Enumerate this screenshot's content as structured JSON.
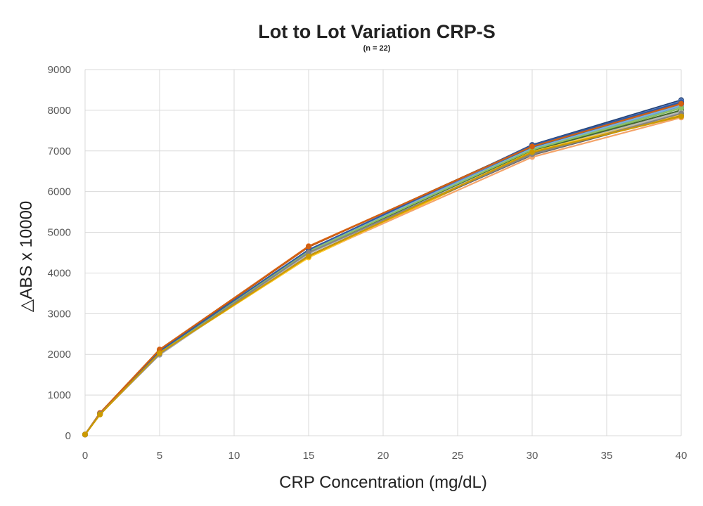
{
  "chart_data": {
    "type": "line",
    "title": "Lot to Lot Variation CRP-S",
    "subtitle": "(n = 22)",
    "xlabel": "CRP Concentration (mg/dL)",
    "ylabel": "△ABS x 10000",
    "xlim": [
      0,
      40
    ],
    "ylim": [
      0,
      9000
    ],
    "xticks": [
      0,
      5,
      10,
      15,
      20,
      25,
      30,
      35,
      40
    ],
    "yticks": [
      0,
      1000,
      2000,
      3000,
      4000,
      5000,
      6000,
      7000,
      8000,
      9000
    ],
    "grid": true,
    "x": [
      0,
      1,
      5,
      15,
      30,
      40
    ],
    "series": [
      {
        "color": "#4472c4",
        "values": [
          30,
          540,
          2050,
          4560,
          7100,
          8200
        ]
      },
      {
        "color": "#ed7d31",
        "values": [
          30,
          560,
          2110,
          4660,
          7100,
          8150
        ]
      },
      {
        "color": "#a5a5a5",
        "values": [
          30,
          530,
          1990,
          4480,
          6980,
          7950
        ]
      },
      {
        "color": "#ffc000",
        "values": [
          30,
          520,
          2030,
          4380,
          6950,
          7880
        ]
      },
      {
        "color": "#5b9bd5",
        "values": [
          30,
          550,
          2060,
          4500,
          7050,
          8100
        ]
      },
      {
        "color": "#70ad47",
        "values": [
          30,
          545,
          2040,
          4520,
          7020,
          8050
        ]
      },
      {
        "color": "#264478",
        "values": [
          30,
          550,
          2070,
          4540,
          7150,
          8250
        ]
      },
      {
        "color": "#9e480e",
        "values": [
          30,
          555,
          2100,
          4640,
          7130,
          8180
        ]
      },
      {
        "color": "#636363",
        "values": [
          30,
          535,
          2000,
          4490,
          6900,
          7900
        ]
      },
      {
        "color": "#997300",
        "values": [
          30,
          525,
          2020,
          4420,
          6960,
          7870
        ]
      },
      {
        "color": "#255e91",
        "values": [
          30,
          548,
          2050,
          4530,
          7080,
          8150
        ]
      },
      {
        "color": "#43682b",
        "values": [
          30,
          540,
          2030,
          4510,
          7000,
          8000
        ]
      },
      {
        "color": "#698ed0",
        "values": [
          30,
          552,
          2060,
          4560,
          7120,
          8220
        ]
      },
      {
        "color": "#f4a46a",
        "values": [
          30,
          545,
          2080,
          4400,
          6850,
          7820
        ]
      },
      {
        "color": "#b7b7b7",
        "values": [
          30,
          530,
          2000,
          4470,
          6970,
          7960
        ]
      },
      {
        "color": "#ffcd33",
        "values": [
          30,
          525,
          2040,
          4390,
          6980,
          7900
        ]
      },
      {
        "color": "#7cafdd",
        "values": [
          30,
          548,
          2070,
          4550,
          7060,
          8120
        ]
      },
      {
        "color": "#8cc168",
        "values": [
          30,
          542,
          2050,
          4530,
          7030,
          8060
        ]
      },
      {
        "color": "#335aa1",
        "values": [
          30,
          550,
          2080,
          4570,
          7140,
          8200
        ]
      },
      {
        "color": "#d26012",
        "values": [
          30,
          558,
          2120,
          4650,
          7110,
          8160
        ]
      },
      {
        "color": "#848484",
        "values": [
          30,
          536,
          2010,
          4500,
          6920,
          7920
        ]
      },
      {
        "color": "#cc9a00",
        "values": [
          30,
          522,
          2030,
          4410,
          6970,
          7850
        ]
      }
    ]
  }
}
